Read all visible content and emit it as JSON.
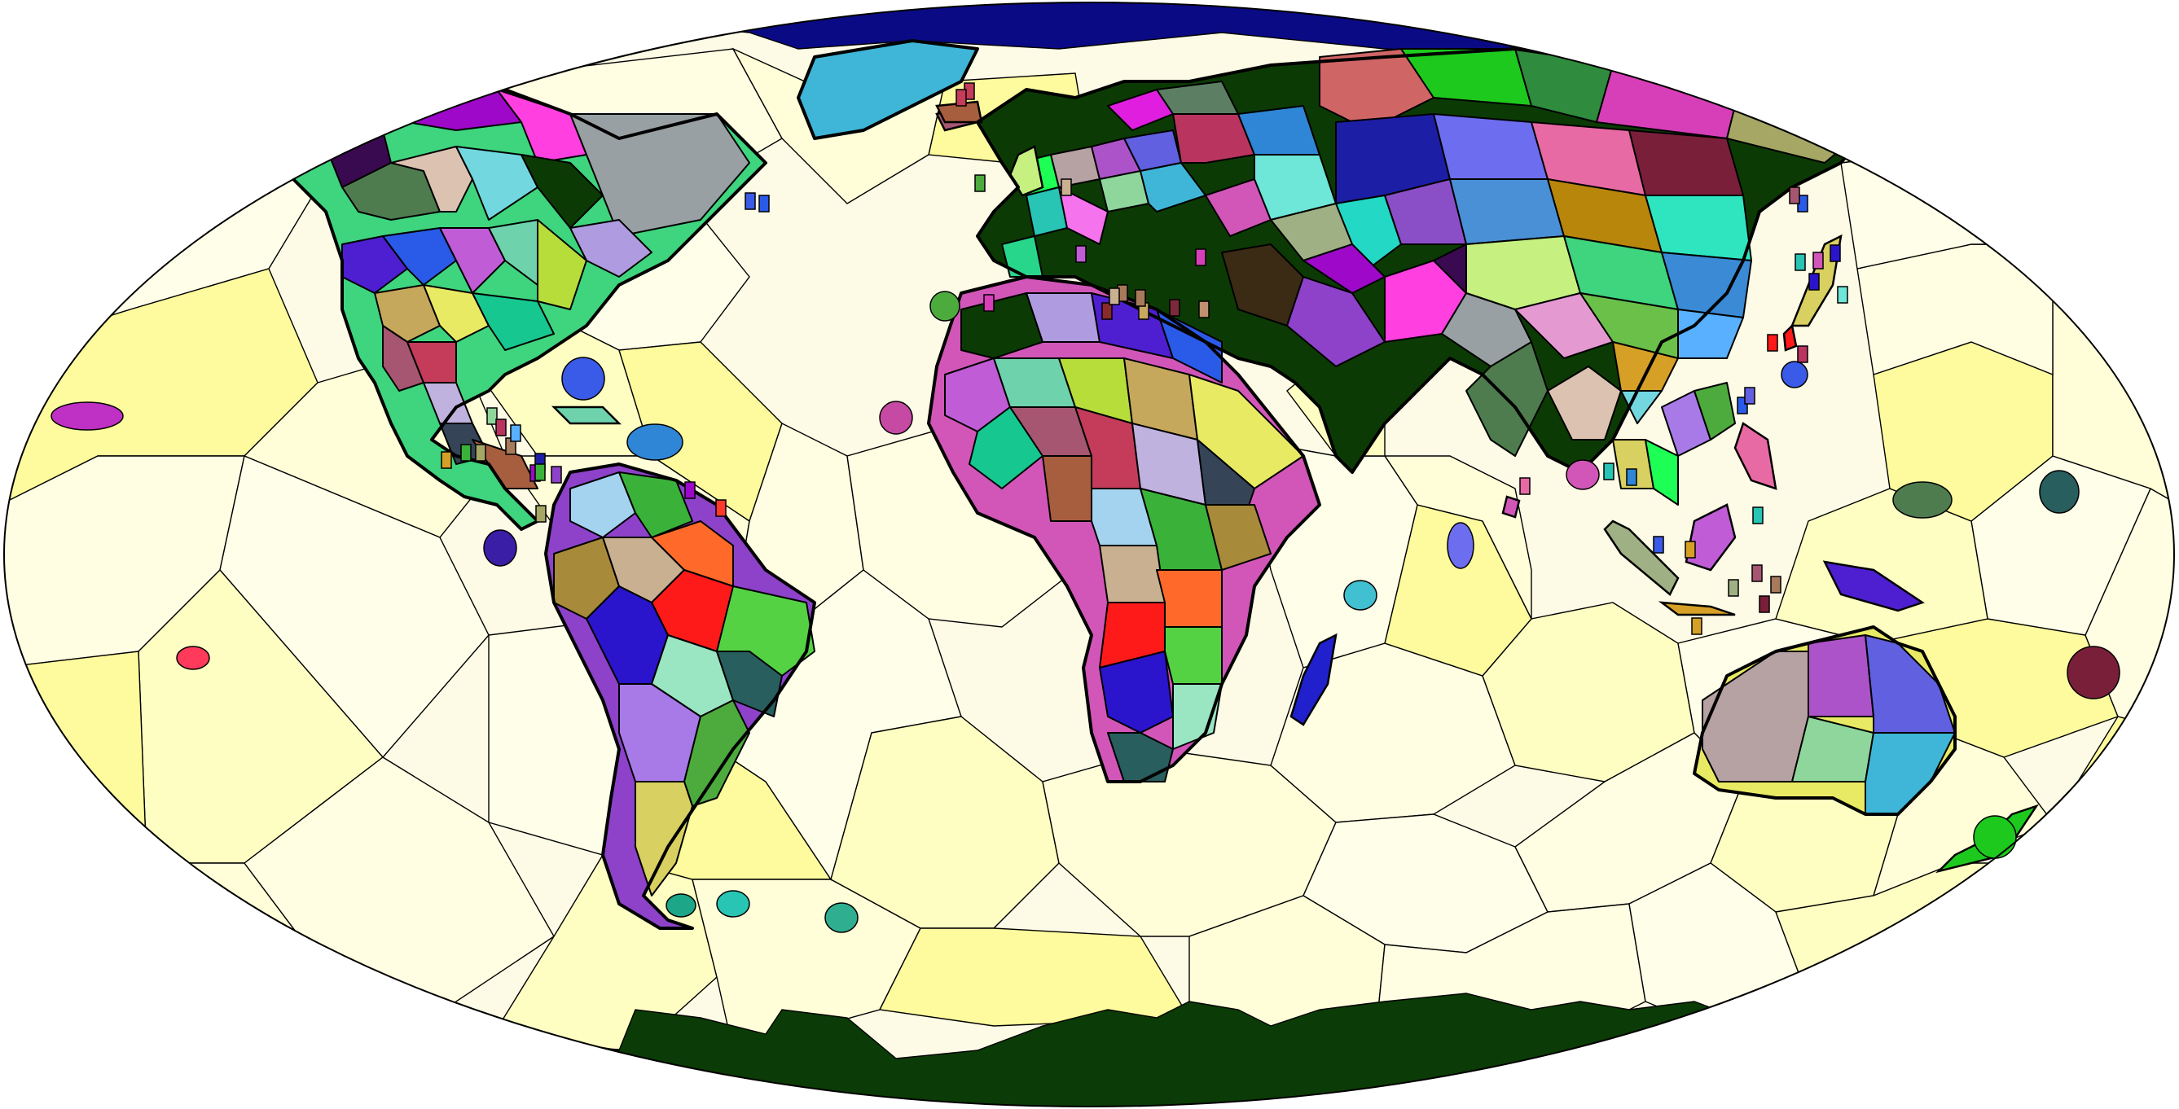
{
  "map": {
    "projection": "robinson",
    "colors": {
      "ocean_light": "#fdfbe6",
      "ocean_medium": "#fffed0",
      "ocean_dark": "#fdfb9e",
      "arctic_ocean": "#0a0a84",
      "antarctica": "#0b3b06",
      "land_outline": "#000000"
    },
    "ocean_zone_palette": [
      "#fffee9",
      "#fffec2",
      "#fdfb9d",
      "#fffed8",
      "#fffde2"
    ],
    "land_region_palette": [
      "#3fd47e",
      "#c43c5a",
      "#5c7f64",
      "#3b2a14",
      "#c8b090",
      "#2f8b3d",
      "#dcc2b0",
      "#a77ae8",
      "#23d8c4",
      "#6ed3ad",
      "#8fd69c",
      "#3a8ad6",
      "#c0b2df",
      "#b9355f",
      "#8d42c9",
      "#ff6a2a",
      "#d73fb8",
      "#73d7e0",
      "#4dab3e",
      "#8a4ec6",
      "#b7dd3a",
      "#3fb6d8",
      "#e49ad0",
      "#364458",
      "#2f86d6",
      "#9d08c9",
      "#ff1a1a",
      "#a6a765",
      "#0c3a05",
      "#d8d060",
      "#4a90d6",
      "#c6a85c",
      "#28c4b4",
      "#6bc04a",
      "#a75e3f",
      "#d156b8",
      "#ff3fe0",
      "#54d244",
      "#1d1ea6",
      "#af9bdf",
      "#1dff54",
      "#b8860b",
      "#e9ea64",
      "#f673ee",
      "#58b0ff",
      "#a3d3ef",
      "#6ee6d8",
      "#98a0a3",
      "#2a14cc",
      "#6d6df0",
      "#4d1fd0",
      "#b6a2a2",
      "#2fe5c0",
      "#16c890",
      "#27d68a",
      "#d6a027",
      "#3ab23a",
      "#d06565",
      "#3a0a50",
      "#9ae5c2",
      "#e86aa4",
      "#2a5ae8",
      "#ad53c9",
      "#c6f080",
      "#a65670",
      "#e01ee0",
      "#9fb084",
      "#a78a3a",
      "#1ec91e",
      "#4e7c4e",
      "#285e5e",
      "#7a1f3a",
      "#c05cd6",
      "#6060e0"
    ]
  }
}
